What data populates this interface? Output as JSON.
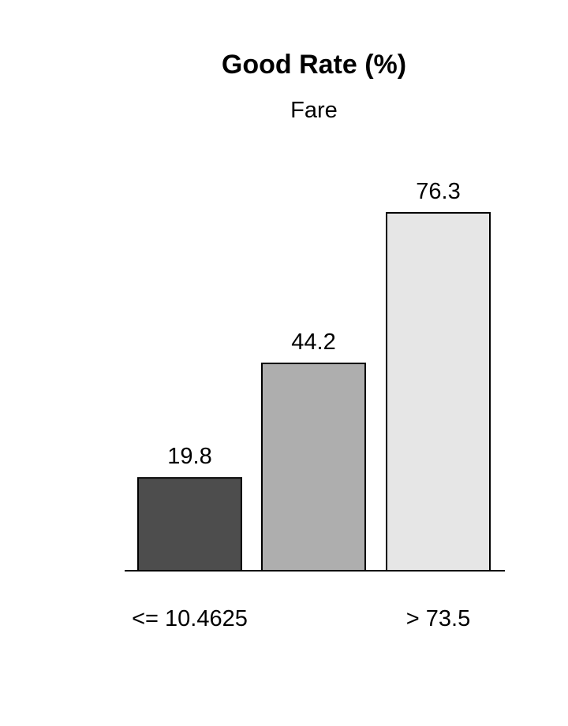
{
  "chart_data": {
    "type": "bar",
    "title": "Good Rate (%)",
    "subtitle": "Fare",
    "categories": [
      "<= 10.4625",
      "",
      "> 73.5"
    ],
    "values": [
      19.8,
      44.2,
      76.3
    ],
    "value_labels": [
      "19.8",
      "44.2",
      "76.3"
    ],
    "colors": [
      "#4d4d4d",
      "#aeaeae",
      "#e6e6e6"
    ],
    "ylim": [
      0,
      76.3
    ],
    "grid": false,
    "legend": "none"
  }
}
